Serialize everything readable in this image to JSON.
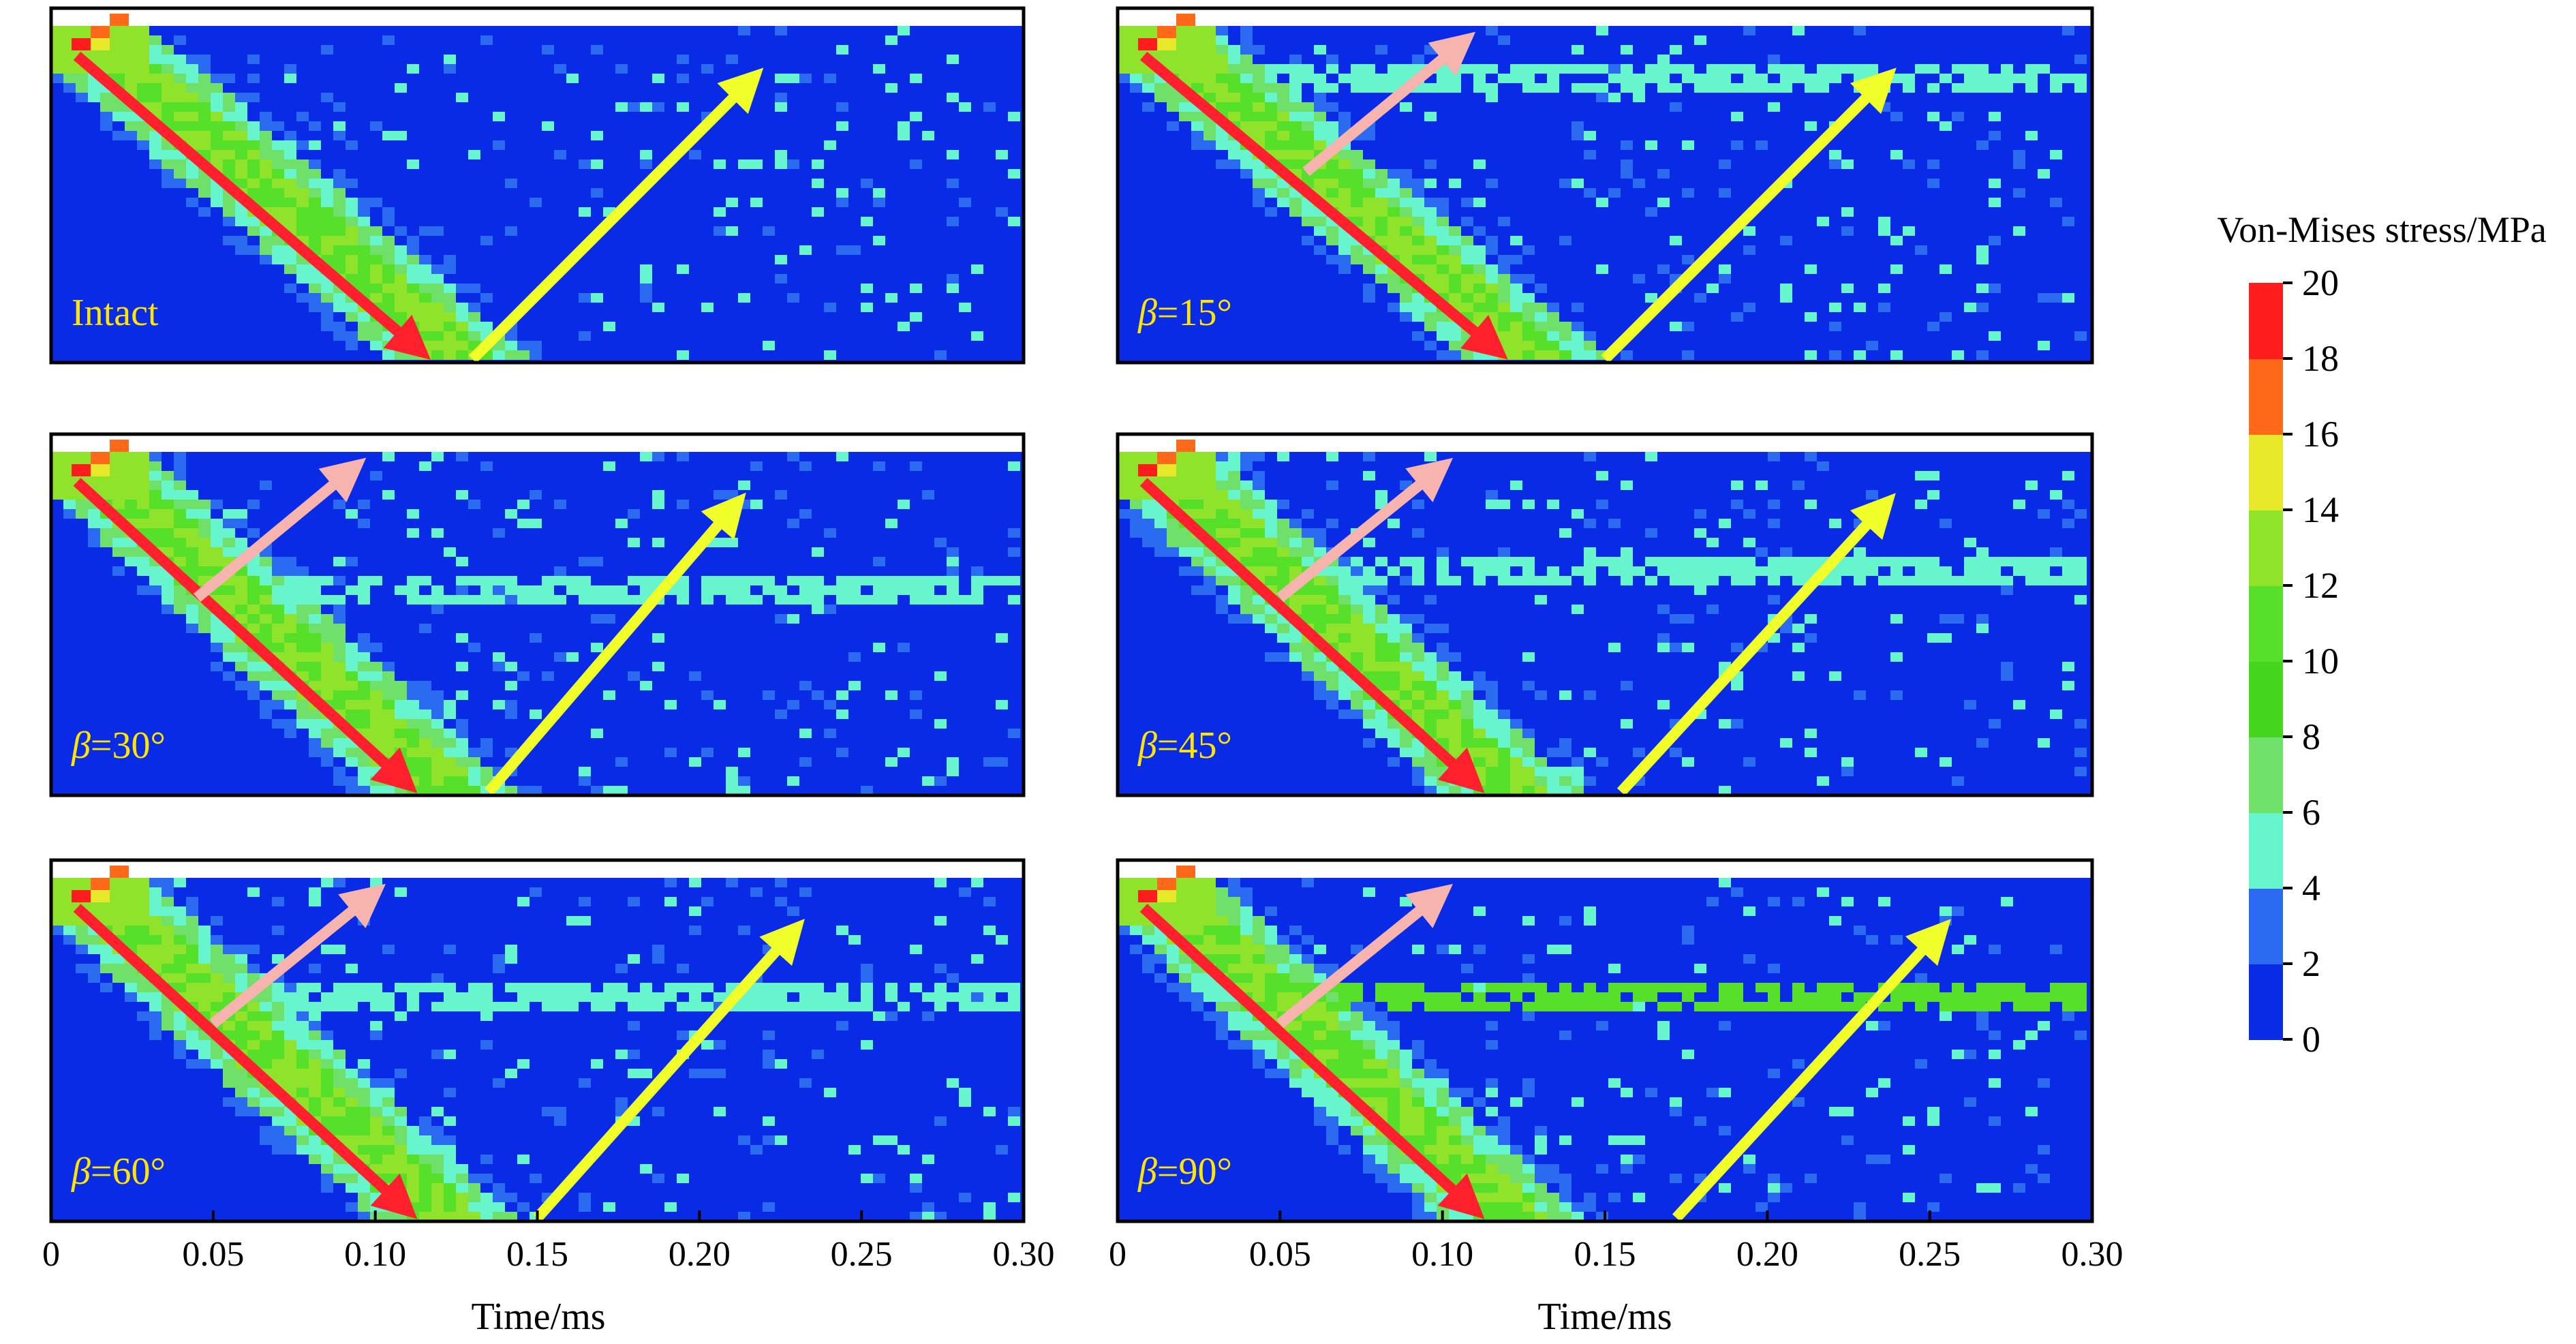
{
  "chart_data": {
    "type": "heatmap",
    "colorbar": {
      "title": "Von-Mises stress/MPa",
      "ticks": [
        "20",
        "18",
        "16",
        "14",
        "12",
        "10",
        "8",
        "6",
        "4",
        "2",
        "0"
      ],
      "bins": [
        {
          "range": [
            0,
            2
          ],
          "color": "#0a2be6"
        },
        {
          "range": [
            2,
            4
          ],
          "color": "#2b6bf2"
        },
        {
          "range": [
            4,
            6
          ],
          "color": "#66f5cd"
        },
        {
          "range": [
            6,
            8
          ],
          "color": "#6fe06a"
        },
        {
          "range": [
            8,
            10
          ],
          "color": "#44d61f"
        },
        {
          "range": [
            10,
            12
          ],
          "color": "#57e02a"
        },
        {
          "range": [
            12,
            14
          ],
          "color": "#8fe32b"
        },
        {
          "range": [
            14,
            16
          ],
          "color": "#e8e82a"
        },
        {
          "range": [
            16,
            18
          ],
          "color": "#ff6a1a"
        },
        {
          "range": [
            18,
            20
          ],
          "color": "#ff1c1c"
        }
      ]
    },
    "xaxis": {
      "title": "Time/ms",
      "tick_labels": [
        "0",
        "0.05",
        "0.10",
        "0.15",
        "0.20",
        "0.25",
        "0.30"
      ],
      "range": [
        0,
        0.3
      ]
    },
    "arrow_colors": {
      "incident": "#ff1f2d",
      "reflected": "#f0ff2a",
      "crack_reflected": "#f7b3ad"
    },
    "panels": [
      {
        "label_sym": "",
        "label_text": "Intact",
        "incident_t": [
          0.008,
          0.112
        ],
        "reflected_t": [
          0.13,
          0.215
        ],
        "crack_arrow": null,
        "crack_band": null
      },
      {
        "label_sym": "β",
        "label_text": "=15°",
        "incident_t": [
          0.008,
          0.115
        ],
        "reflected_t": [
          0.15,
          0.235
        ],
        "crack_arrow": [
          0.058,
          0.105
        ],
        "crack_band": 0.14
      },
      {
        "label_sym": "β",
        "label_text": "=30°",
        "incident_t": [
          0.008,
          0.108
        ],
        "reflected_t": [
          0.135,
          0.21
        ],
        "crack_arrow": [
          0.045,
          0.092
        ],
        "crack_band": 0.39
      },
      {
        "label_sym": "β",
        "label_text": "=45°",
        "incident_t": [
          0.008,
          0.108
        ],
        "reflected_t": [
          0.155,
          0.235
        ],
        "crack_arrow": [
          0.05,
          0.098
        ],
        "crack_band": 0.34
      },
      {
        "label_sym": "β",
        "label_text": "=60°",
        "incident_t": [
          0.008,
          0.108
        ],
        "reflected_t": [
          0.15,
          0.228
        ],
        "crack_arrow": [
          0.05,
          0.098
        ],
        "crack_band": 0.34
      },
      {
        "label_sym": "β",
        "label_text": "=90°",
        "incident_t": [
          0.008,
          0.108
        ],
        "reflected_t": [
          0.172,
          0.252
        ],
        "crack_arrow": [
          0.05,
          0.098
        ],
        "crack_band": 0.34
      }
    ]
  }
}
